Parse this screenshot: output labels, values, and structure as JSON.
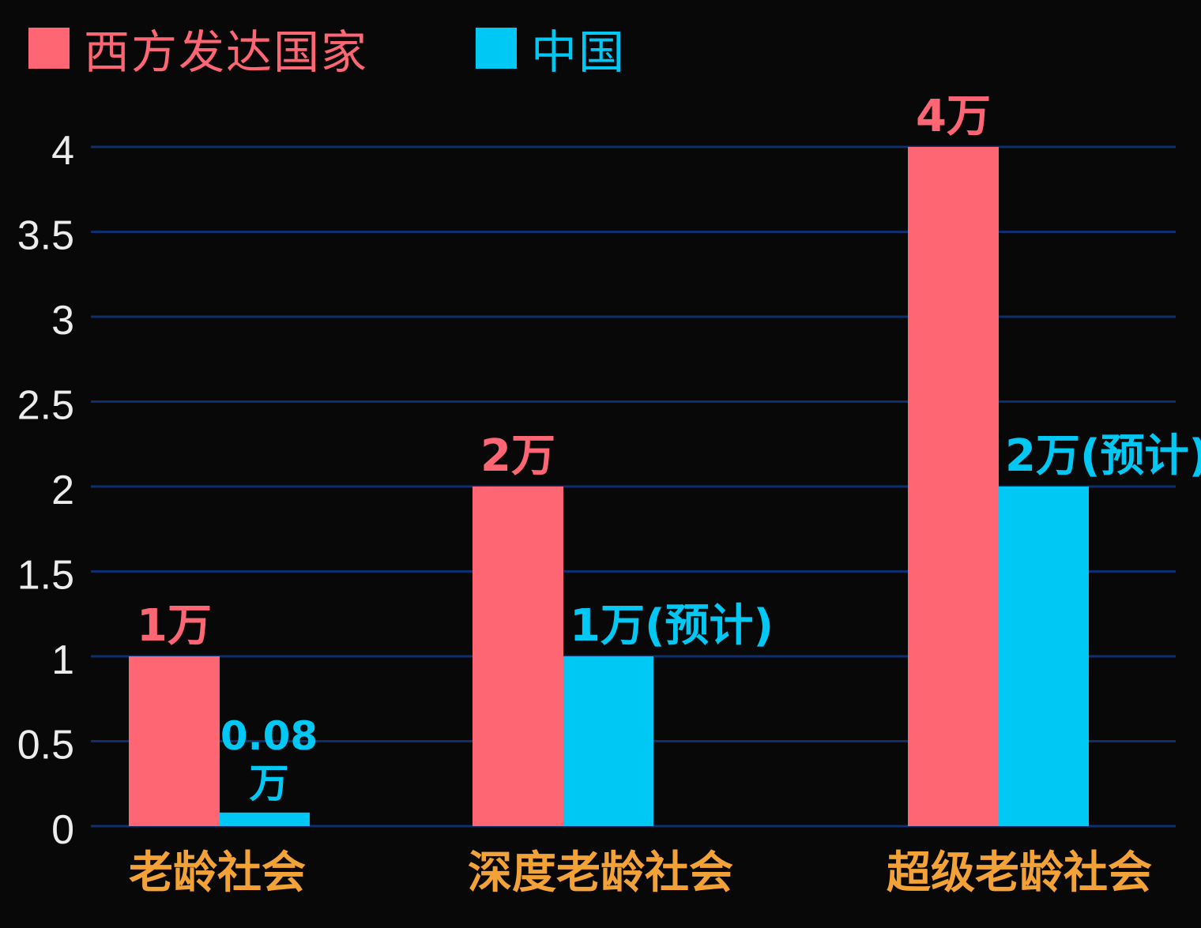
{
  "colors": {
    "background": "#080808",
    "grid": "#0d2f70",
    "west": "#ff6673",
    "china": "#00c8f5",
    "category_text": "#f3a238",
    "tick_text": "#ececec"
  },
  "chart_data": {
    "type": "bar",
    "categories": [
      "老龄社会",
      "深度老龄社会",
      "超级老龄社会"
    ],
    "series": [
      {
        "name": "西方发达国家",
        "values": [
          1,
          2,
          4
        ],
        "labels": [
          "1万",
          "2万",
          "4万"
        ]
      },
      {
        "name": "中国",
        "values": [
          0.08,
          1,
          2
        ],
        "labels": [
          "0.08\n万",
          "1万(预计)",
          "2万(预计)"
        ]
      }
    ],
    "yticks": [
      "0",
      "0.5",
      "1",
      "1.5",
      "2",
      "2.5",
      "3",
      "3.5",
      "4"
    ],
    "ylim": [
      0,
      4
    ],
    "grid": true,
    "legend_position": "top-left"
  }
}
